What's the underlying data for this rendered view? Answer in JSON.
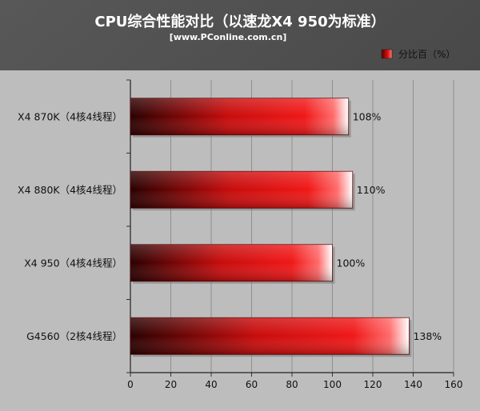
{
  "chart_data": {
    "type": "bar",
    "orientation": "horizontal",
    "title": "CPU综合性能对比（以速龙X4 950为标准）",
    "subtitle": "[www.PConline.com.cn]",
    "legend": {
      "label": "分比百（%）",
      "position": "top-right"
    },
    "categories": [
      "X4 870K（4核4线程）",
      "X4 880K（4核4线程）",
      "X4 950（4核4线程）",
      "G4560（2核4线程）"
    ],
    "series": [
      {
        "name": "分比百（%）",
        "values": [
          108,
          110,
          100,
          138
        ],
        "value_labels": [
          "108%",
          "110%",
          "100%",
          "138%"
        ]
      }
    ],
    "xlim": [
      0,
      160
    ],
    "ticks": [
      "0",
      "20",
      "40",
      "60",
      "80",
      "100",
      "120",
      "140",
      "160"
    ],
    "grid": true,
    "colors": {
      "bar": "#e01010",
      "background": "#4a4a4a",
      "plot_background": "#bdbdbd"
    }
  }
}
